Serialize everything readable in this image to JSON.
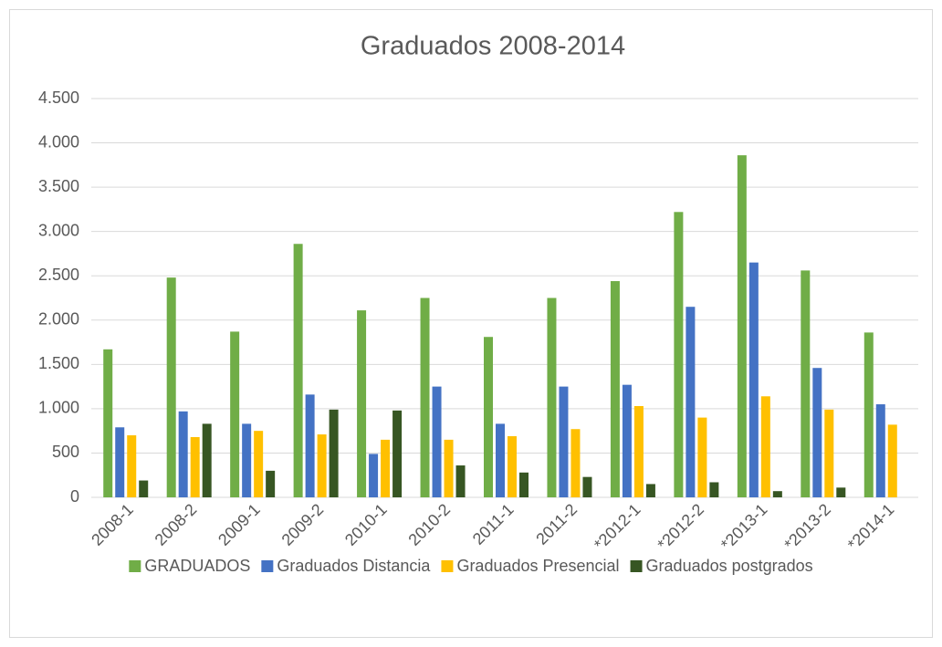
{
  "chart_data": {
    "type": "bar",
    "title": "Graduados 2008-2014",
    "categories": [
      "2008-1",
      "2008-2",
      "2009-1",
      "2009-2",
      "2010-1",
      "2010-2",
      "2011-1",
      "2011-2",
      "*2012-1",
      "*2012-2",
      "*2013-1",
      "*2013-2",
      "*2014-1"
    ],
    "series": [
      {
        "name": "GRADUADOS",
        "color": "#70ad47",
        "values": [
          1670,
          2480,
          1870,
          2860,
          2110,
          2250,
          1810,
          2250,
          2440,
          3220,
          3860,
          2560,
          1860
        ]
      },
      {
        "name": "Graduados Distancia",
        "color": "#4472c4",
        "values": [
          790,
          970,
          830,
          1160,
          490,
          1250,
          830,
          1250,
          1270,
          2150,
          2650,
          1460,
          1050
        ]
      },
      {
        "name": "Graduados Presencial",
        "color": "#ffc000",
        "values": [
          700,
          680,
          750,
          710,
          650,
          650,
          690,
          770,
          1030,
          900,
          1140,
          990,
          820
        ]
      },
      {
        "name": "Graduados postgrados",
        "color": "#375623",
        "values": [
          190,
          830,
          300,
          990,
          980,
          360,
          280,
          230,
          150,
          170,
          70,
          110,
          null
        ]
      }
    ],
    "ylim": [
      0,
      4500
    ],
    "yticks": [
      0,
      {
        "value": 500,
        "label": "500"
      },
      {
        "value": 1000,
        "label": "1.000"
      },
      {
        "value": 1500,
        "label": "1.500"
      },
      {
        "value": 2000,
        "label": "2.000"
      },
      {
        "value": 2500,
        "label": "2.500"
      },
      {
        "value": 3000,
        "label": "3.000"
      },
      {
        "value": 3500,
        "label": "3.500"
      },
      {
        "value": 4000,
        "label": "4.000"
      },
      {
        "value": 4500,
        "label": "4.500"
      }
    ],
    "grid": true,
    "legend": "bottom"
  }
}
